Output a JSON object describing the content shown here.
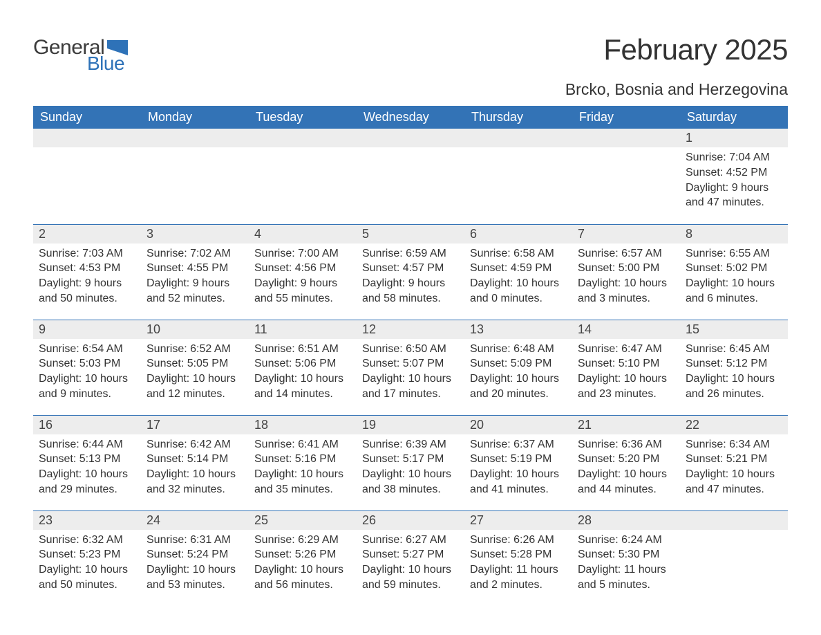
{
  "brand": {
    "general": "General",
    "blue": "Blue"
  },
  "title": "February 2025",
  "location": "Brcko, Bosnia and Herzegovina",
  "colors": {
    "header_bg": "#3373b6",
    "header_text": "#ffffff",
    "daynum_bg": "#ededed",
    "row_border": "#3373b6",
    "body_text": "#333333",
    "logo_gray": "#3b3b3b",
    "logo_blue": "#2e72b8",
    "page_bg": "#ffffff"
  },
  "typography": {
    "title_fontsize": 42,
    "location_fontsize": 23,
    "header_fontsize": 18,
    "daynum_fontsize": 18,
    "body_fontsize": 16,
    "logo_fontsize": 30
  },
  "weekdays": [
    "Sunday",
    "Monday",
    "Tuesday",
    "Wednesday",
    "Thursday",
    "Friday",
    "Saturday"
  ],
  "weeks": [
    [
      null,
      null,
      null,
      null,
      null,
      null,
      {
        "day": "1",
        "sunrise": "Sunrise: 7:04 AM",
        "sunset": "Sunset: 4:52 PM",
        "daylight": "Daylight: 9 hours and 47 minutes."
      }
    ],
    [
      {
        "day": "2",
        "sunrise": "Sunrise: 7:03 AM",
        "sunset": "Sunset: 4:53 PM",
        "daylight": "Daylight: 9 hours and 50 minutes."
      },
      {
        "day": "3",
        "sunrise": "Sunrise: 7:02 AM",
        "sunset": "Sunset: 4:55 PM",
        "daylight": "Daylight: 9 hours and 52 minutes."
      },
      {
        "day": "4",
        "sunrise": "Sunrise: 7:00 AM",
        "sunset": "Sunset: 4:56 PM",
        "daylight": "Daylight: 9 hours and 55 minutes."
      },
      {
        "day": "5",
        "sunrise": "Sunrise: 6:59 AM",
        "sunset": "Sunset: 4:57 PM",
        "daylight": "Daylight: 9 hours and 58 minutes."
      },
      {
        "day": "6",
        "sunrise": "Sunrise: 6:58 AM",
        "sunset": "Sunset: 4:59 PM",
        "daylight": "Daylight: 10 hours and 0 minutes."
      },
      {
        "day": "7",
        "sunrise": "Sunrise: 6:57 AM",
        "sunset": "Sunset: 5:00 PM",
        "daylight": "Daylight: 10 hours and 3 minutes."
      },
      {
        "day": "8",
        "sunrise": "Sunrise: 6:55 AM",
        "sunset": "Sunset: 5:02 PM",
        "daylight": "Daylight: 10 hours and 6 minutes."
      }
    ],
    [
      {
        "day": "9",
        "sunrise": "Sunrise: 6:54 AM",
        "sunset": "Sunset: 5:03 PM",
        "daylight": "Daylight: 10 hours and 9 minutes."
      },
      {
        "day": "10",
        "sunrise": "Sunrise: 6:52 AM",
        "sunset": "Sunset: 5:05 PM",
        "daylight": "Daylight: 10 hours and 12 minutes."
      },
      {
        "day": "11",
        "sunrise": "Sunrise: 6:51 AM",
        "sunset": "Sunset: 5:06 PM",
        "daylight": "Daylight: 10 hours and 14 minutes."
      },
      {
        "day": "12",
        "sunrise": "Sunrise: 6:50 AM",
        "sunset": "Sunset: 5:07 PM",
        "daylight": "Daylight: 10 hours and 17 minutes."
      },
      {
        "day": "13",
        "sunrise": "Sunrise: 6:48 AM",
        "sunset": "Sunset: 5:09 PM",
        "daylight": "Daylight: 10 hours and 20 minutes."
      },
      {
        "day": "14",
        "sunrise": "Sunrise: 6:47 AM",
        "sunset": "Sunset: 5:10 PM",
        "daylight": "Daylight: 10 hours and 23 minutes."
      },
      {
        "day": "15",
        "sunrise": "Sunrise: 6:45 AM",
        "sunset": "Sunset: 5:12 PM",
        "daylight": "Daylight: 10 hours and 26 minutes."
      }
    ],
    [
      {
        "day": "16",
        "sunrise": "Sunrise: 6:44 AM",
        "sunset": "Sunset: 5:13 PM",
        "daylight": "Daylight: 10 hours and 29 minutes."
      },
      {
        "day": "17",
        "sunrise": "Sunrise: 6:42 AM",
        "sunset": "Sunset: 5:14 PM",
        "daylight": "Daylight: 10 hours and 32 minutes."
      },
      {
        "day": "18",
        "sunrise": "Sunrise: 6:41 AM",
        "sunset": "Sunset: 5:16 PM",
        "daylight": "Daylight: 10 hours and 35 minutes."
      },
      {
        "day": "19",
        "sunrise": "Sunrise: 6:39 AM",
        "sunset": "Sunset: 5:17 PM",
        "daylight": "Daylight: 10 hours and 38 minutes."
      },
      {
        "day": "20",
        "sunrise": "Sunrise: 6:37 AM",
        "sunset": "Sunset: 5:19 PM",
        "daylight": "Daylight: 10 hours and 41 minutes."
      },
      {
        "day": "21",
        "sunrise": "Sunrise: 6:36 AM",
        "sunset": "Sunset: 5:20 PM",
        "daylight": "Daylight: 10 hours and 44 minutes."
      },
      {
        "day": "22",
        "sunrise": "Sunrise: 6:34 AM",
        "sunset": "Sunset: 5:21 PM",
        "daylight": "Daylight: 10 hours and 47 minutes."
      }
    ],
    [
      {
        "day": "23",
        "sunrise": "Sunrise: 6:32 AM",
        "sunset": "Sunset: 5:23 PM",
        "daylight": "Daylight: 10 hours and 50 minutes."
      },
      {
        "day": "24",
        "sunrise": "Sunrise: 6:31 AM",
        "sunset": "Sunset: 5:24 PM",
        "daylight": "Daylight: 10 hours and 53 minutes."
      },
      {
        "day": "25",
        "sunrise": "Sunrise: 6:29 AM",
        "sunset": "Sunset: 5:26 PM",
        "daylight": "Daylight: 10 hours and 56 minutes."
      },
      {
        "day": "26",
        "sunrise": "Sunrise: 6:27 AM",
        "sunset": "Sunset: 5:27 PM",
        "daylight": "Daylight: 10 hours and 59 minutes."
      },
      {
        "day": "27",
        "sunrise": "Sunrise: 6:26 AM",
        "sunset": "Sunset: 5:28 PM",
        "daylight": "Daylight: 11 hours and 2 minutes."
      },
      {
        "day": "28",
        "sunrise": "Sunrise: 6:24 AM",
        "sunset": "Sunset: 5:30 PM",
        "daylight": "Daylight: 11 hours and 5 minutes."
      },
      null
    ]
  ]
}
